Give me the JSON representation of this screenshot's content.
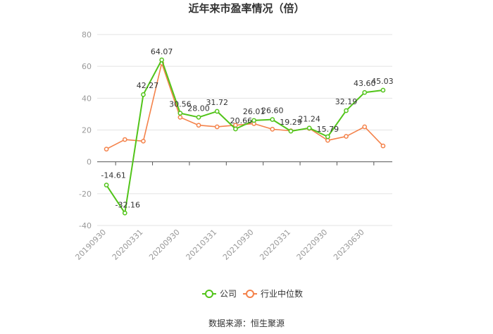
{
  "chart_data": {
    "type": "line",
    "title": "近年来市盈率情况（倍）",
    "xlabel": "",
    "ylabel": "",
    "ylim": [
      -40,
      80
    ],
    "yticks": [
      "80",
      "60",
      "40",
      "20",
      "0",
      "-20",
      "-40"
    ],
    "x_tick_labels": [
      "20190930",
      "20200331",
      "20200930",
      "20210331",
      "20210930",
      "20220331",
      "20220930",
      "20230630"
    ],
    "series": [
      {
        "name": "公司",
        "color": "#52c41a",
        "values": [
          -14.61,
          -32.16,
          42.27,
          64.07,
          30.56,
          28.0,
          31.72,
          20.66,
          26.01,
          26.6,
          19.29,
          21.24,
          15.79,
          32.19,
          43.6,
          45.03
        ],
        "labels": [
          "-14.61",
          "-32.16",
          "42.27",
          "64.07",
          "30.56",
          "28.00",
          "31.72",
          "20.66",
          "26.01",
          "26.60",
          "19.29",
          "21.24",
          "15.79",
          "32.19",
          "43.60",
          "45.03"
        ]
      },
      {
        "name": "行业中位数",
        "color": "#f4824a",
        "values": [
          8,
          14,
          13,
          62,
          28,
          23,
          22,
          23,
          24,
          20.5,
          19.5,
          21,
          13.5,
          16,
          22,
          10
        ]
      }
    ],
    "grid": true,
    "legend_position": "bottom-center"
  },
  "footer": {
    "source": "数据来源：恒生聚源"
  }
}
